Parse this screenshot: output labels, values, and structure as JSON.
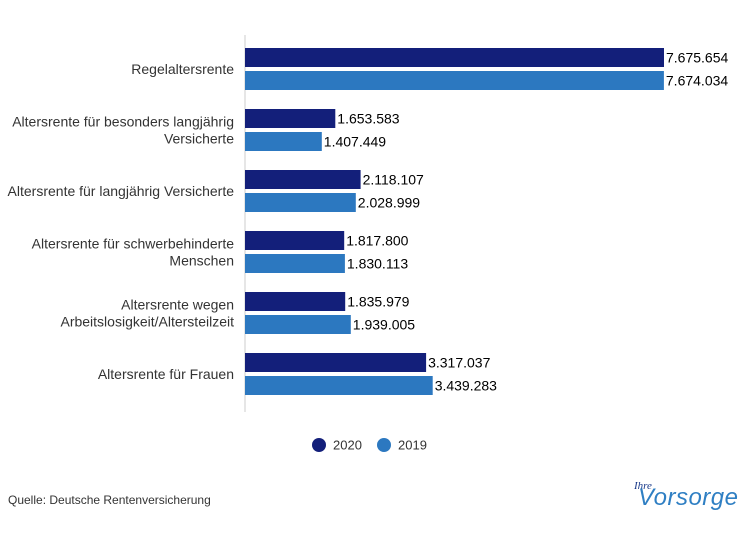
{
  "chart_data": {
    "type": "bar",
    "orientation": "horizontal",
    "categories": [
      [
        "Regelaltersrente"
      ],
      [
        "Altersrente für besonders langjährig",
        "Versicherte"
      ],
      [
        "Altersrente für langjährig Versicherte"
      ],
      [
        "Altersrente für schwerbehinderte",
        "Menschen"
      ],
      [
        "Altersrente wegen",
        "Arbeitslosigkeit/Altersteilzeit"
      ],
      [
        "Altersrente für Frauen"
      ]
    ],
    "series": [
      {
        "name": "2020",
        "color": "#131f7a",
        "values": [
          7675654,
          1653583,
          2118107,
          1817800,
          1835979,
          3317037
        ],
        "labels": [
          "7.675.654",
          "1.653.583",
          "2.118.107",
          "1.817.800",
          "1.835.979",
          "3.317.037"
        ]
      },
      {
        "name": "2019",
        "color": "#2c78c0",
        "values": [
          7674034,
          1407449,
          2028999,
          1830113,
          1939005,
          3439283
        ],
        "labels": [
          "7.674.034",
          "1.407.449",
          "2.028.999",
          "1.830.113",
          "1.939.005",
          "3.439.283"
        ]
      }
    ],
    "xlim": [
      0,
      7675654
    ],
    "grid": false,
    "legend_position": "bottom-center",
    "title": "",
    "xlabel": "",
    "ylabel": ""
  },
  "footer": {
    "source": "Quelle: Deutsche Rentenversicherung"
  },
  "logo": {
    "prefix": "Ihre",
    "word": "Vorsorge"
  }
}
